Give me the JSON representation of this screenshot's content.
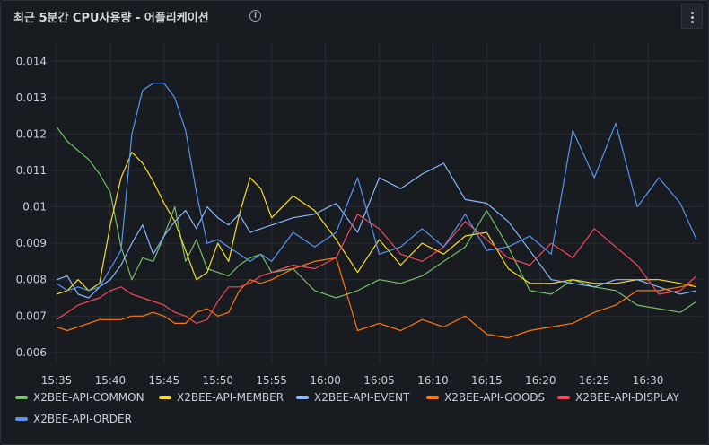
{
  "panel": {
    "title": "최근 5분간 CPU사용량 - 어플리케이션",
    "info_icon": "info-icon",
    "menu_icon": "vertical-dots-icon"
  },
  "colors": {
    "X2BEE-API-COMMON": "#73bf69",
    "X2BEE-API-MEMBER": "#fade2a",
    "X2BEE-API-EVENT": "#8ab8ff",
    "X2BEE-API-GOODS": "#ff780a",
    "X2BEE-API-DISPLAY": "#f2495c",
    "X2BEE-API-ORDER": "#5794f2"
  },
  "chart_data": {
    "type": "line",
    "title": "최근 5분간 CPU사용량 - 어플리케이션",
    "xlabel": "",
    "ylabel": "",
    "x_ticks": [
      "15:35",
      "15:40",
      "15:45",
      "15:50",
      "15:55",
      "16:00",
      "16:05",
      "16:10",
      "16:15",
      "16:20",
      "16:25",
      "16:30"
    ],
    "y_ticks": [
      "0.006",
      "0.007",
      "0.008",
      "0.009",
      "0.01",
      "0.011",
      "0.012",
      "0.013",
      "0.014"
    ],
    "ylim": [
      0.0057,
      0.0145
    ],
    "xlim_minutes": [
      -0.5,
      60.0
    ],
    "x_unit": "minutes after 15:35",
    "grid": true,
    "legend_position": "bottom",
    "series": [
      {
        "name": "X2BEE-API-COMMON",
        "color": "#73bf69",
        "x": [
          0,
          1,
          3,
          4,
          5,
          6,
          7,
          8,
          9,
          10,
          11,
          12,
          13,
          14,
          15,
          16,
          17,
          18,
          19,
          20,
          22,
          24,
          26,
          28,
          30,
          32,
          34,
          36,
          38,
          40,
          42,
          44,
          46,
          48,
          50,
          52,
          54,
          56,
          58,
          59.5
        ],
        "y": [
          0.0122,
          0.0118,
          0.0113,
          0.0109,
          0.0104,
          0.0089,
          0.008,
          0.0086,
          0.0085,
          0.0092,
          0.01,
          0.0085,
          0.0091,
          0.0083,
          0.0082,
          0.0081,
          0.0084,
          0.0086,
          0.0087,
          0.0082,
          0.0083,
          0.0077,
          0.0075,
          0.0077,
          0.008,
          0.0079,
          0.0081,
          0.0085,
          0.0089,
          0.0099,
          0.0089,
          0.0077,
          0.0076,
          0.008,
          0.0078,
          0.0077,
          0.0073,
          0.0072,
          0.0071,
          0.0074
        ]
      },
      {
        "name": "X2BEE-API-MEMBER",
        "color": "#fade2a",
        "x": [
          0,
          1,
          2,
          3,
          4,
          5,
          6,
          7,
          8,
          9,
          10,
          11,
          12,
          13,
          14,
          15,
          16,
          17,
          18,
          19,
          20,
          22,
          24,
          26,
          28,
          30,
          32,
          34,
          36,
          38,
          40,
          42,
          44,
          46,
          48,
          50,
          52,
          54,
          56,
          58,
          59.5
        ],
        "y": [
          0.0076,
          0.0077,
          0.008,
          0.0077,
          0.0079,
          0.0095,
          0.0108,
          0.0115,
          0.0112,
          0.0107,
          0.0101,
          0.0096,
          0.0088,
          0.008,
          0.0082,
          0.009,
          0.0085,
          0.0098,
          0.0108,
          0.0105,
          0.0097,
          0.0103,
          0.0099,
          0.0091,
          0.0082,
          0.0091,
          0.0084,
          0.009,
          0.0087,
          0.0092,
          0.0093,
          0.0083,
          0.0079,
          0.0079,
          0.008,
          0.0079,
          0.0079,
          0.008,
          0.008,
          0.0079,
          0.0078
        ]
      },
      {
        "name": "X2BEE-API-EVENT",
        "color": "#8ab8ff",
        "x": [
          0,
          1,
          2,
          3,
          4,
          5,
          6,
          7,
          8,
          9,
          10,
          11,
          12,
          13,
          14,
          15,
          16,
          17,
          18,
          19,
          20,
          22,
          24,
          26,
          28,
          30,
          32,
          34,
          36,
          38,
          40,
          42,
          44,
          46,
          48,
          50,
          52,
          54,
          56,
          58,
          59.5
        ],
        "y": [
          0.008,
          0.0081,
          0.0076,
          0.0075,
          0.0078,
          0.008,
          0.0084,
          0.009,
          0.0095,
          0.0087,
          0.0092,
          0.0096,
          0.0099,
          0.0094,
          0.01,
          0.0097,
          0.0095,
          0.0098,
          0.0093,
          0.0094,
          0.0095,
          0.0097,
          0.0098,
          0.0101,
          0.0093,
          0.0108,
          0.0105,
          0.0109,
          0.0112,
          0.0102,
          0.0101,
          0.0096,
          0.0088,
          0.008,
          0.0079,
          0.0078,
          0.008,
          0.008,
          0.0078,
          0.0076,
          0.0077
        ]
      },
      {
        "name": "X2BEE-API-GOODS",
        "color": "#ff780a",
        "x": [
          0,
          1,
          2,
          3,
          4,
          5,
          6,
          7,
          8,
          9,
          10,
          11,
          12,
          13,
          14,
          15,
          16,
          17,
          18,
          19,
          20,
          22,
          24,
          26,
          28,
          30,
          32,
          34,
          36,
          38,
          40,
          42,
          44,
          46,
          48,
          50,
          52,
          54,
          56,
          58,
          59.5
        ],
        "y": [
          0.0067,
          0.0066,
          0.0067,
          0.0068,
          0.0069,
          0.0069,
          0.0069,
          0.007,
          0.007,
          0.0071,
          0.007,
          0.0068,
          0.0068,
          0.0071,
          0.0072,
          0.007,
          0.0071,
          0.0077,
          0.008,
          0.0079,
          0.008,
          0.0083,
          0.0085,
          0.0086,
          0.0066,
          0.0068,
          0.0066,
          0.0069,
          0.0067,
          0.007,
          0.0065,
          0.0064,
          0.0066,
          0.0067,
          0.0068,
          0.0071,
          0.0073,
          0.0077,
          0.0077,
          0.0078,
          0.0079
        ]
      },
      {
        "name": "X2BEE-API-DISPLAY",
        "color": "#f2495c",
        "x": [
          0,
          1,
          2,
          3,
          4,
          5,
          6,
          7,
          8,
          9,
          10,
          11,
          12,
          13,
          14,
          15,
          16,
          17,
          18,
          19,
          20,
          22,
          24,
          26,
          28,
          30,
          32,
          34,
          36,
          38,
          40,
          42,
          44,
          46,
          48,
          50,
          52,
          54,
          56,
          58,
          59.5
        ],
        "y": [
          0.0069,
          0.0071,
          0.0073,
          0.0074,
          0.0075,
          0.0077,
          0.0078,
          0.0076,
          0.0075,
          0.0074,
          0.0073,
          0.0071,
          0.007,
          0.0068,
          0.0069,
          0.0074,
          0.0078,
          0.0078,
          0.0079,
          0.0081,
          0.0082,
          0.0084,
          0.0083,
          0.0086,
          0.0098,
          0.0094,
          0.0087,
          0.0085,
          0.0089,
          0.0096,
          0.0091,
          0.0086,
          0.0084,
          0.009,
          0.0086,
          0.0094,
          0.0089,
          0.0084,
          0.0076,
          0.0077,
          0.0081
        ]
      },
      {
        "name": "X2BEE-API-ORDER",
        "color": "#5794f2",
        "x": [
          0,
          1,
          2,
          3,
          4,
          5,
          6,
          7,
          8,
          9,
          10,
          11,
          12,
          13,
          14,
          15,
          16,
          17,
          18,
          19,
          20,
          22,
          24,
          26,
          28,
          30,
          32,
          34,
          36,
          38,
          40,
          42,
          44,
          46,
          48,
          50,
          52,
          54,
          56,
          58,
          59.5
        ],
        "y": [
          0.0079,
          0.0077,
          0.0078,
          0.0077,
          0.0078,
          0.0083,
          0.0088,
          0.012,
          0.0132,
          0.0134,
          0.0134,
          0.013,
          0.0121,
          0.0104,
          0.009,
          0.0091,
          0.0089,
          0.0087,
          0.0085,
          0.0087,
          0.0085,
          0.0093,
          0.0089,
          0.0093,
          0.0108,
          0.0087,
          0.0089,
          0.0094,
          0.0089,
          0.0098,
          0.0088,
          0.0089,
          0.0092,
          0.0087,
          0.0121,
          0.0108,
          0.0123,
          0.01,
          0.0108,
          0.0101,
          0.0091
        ]
      }
    ]
  }
}
